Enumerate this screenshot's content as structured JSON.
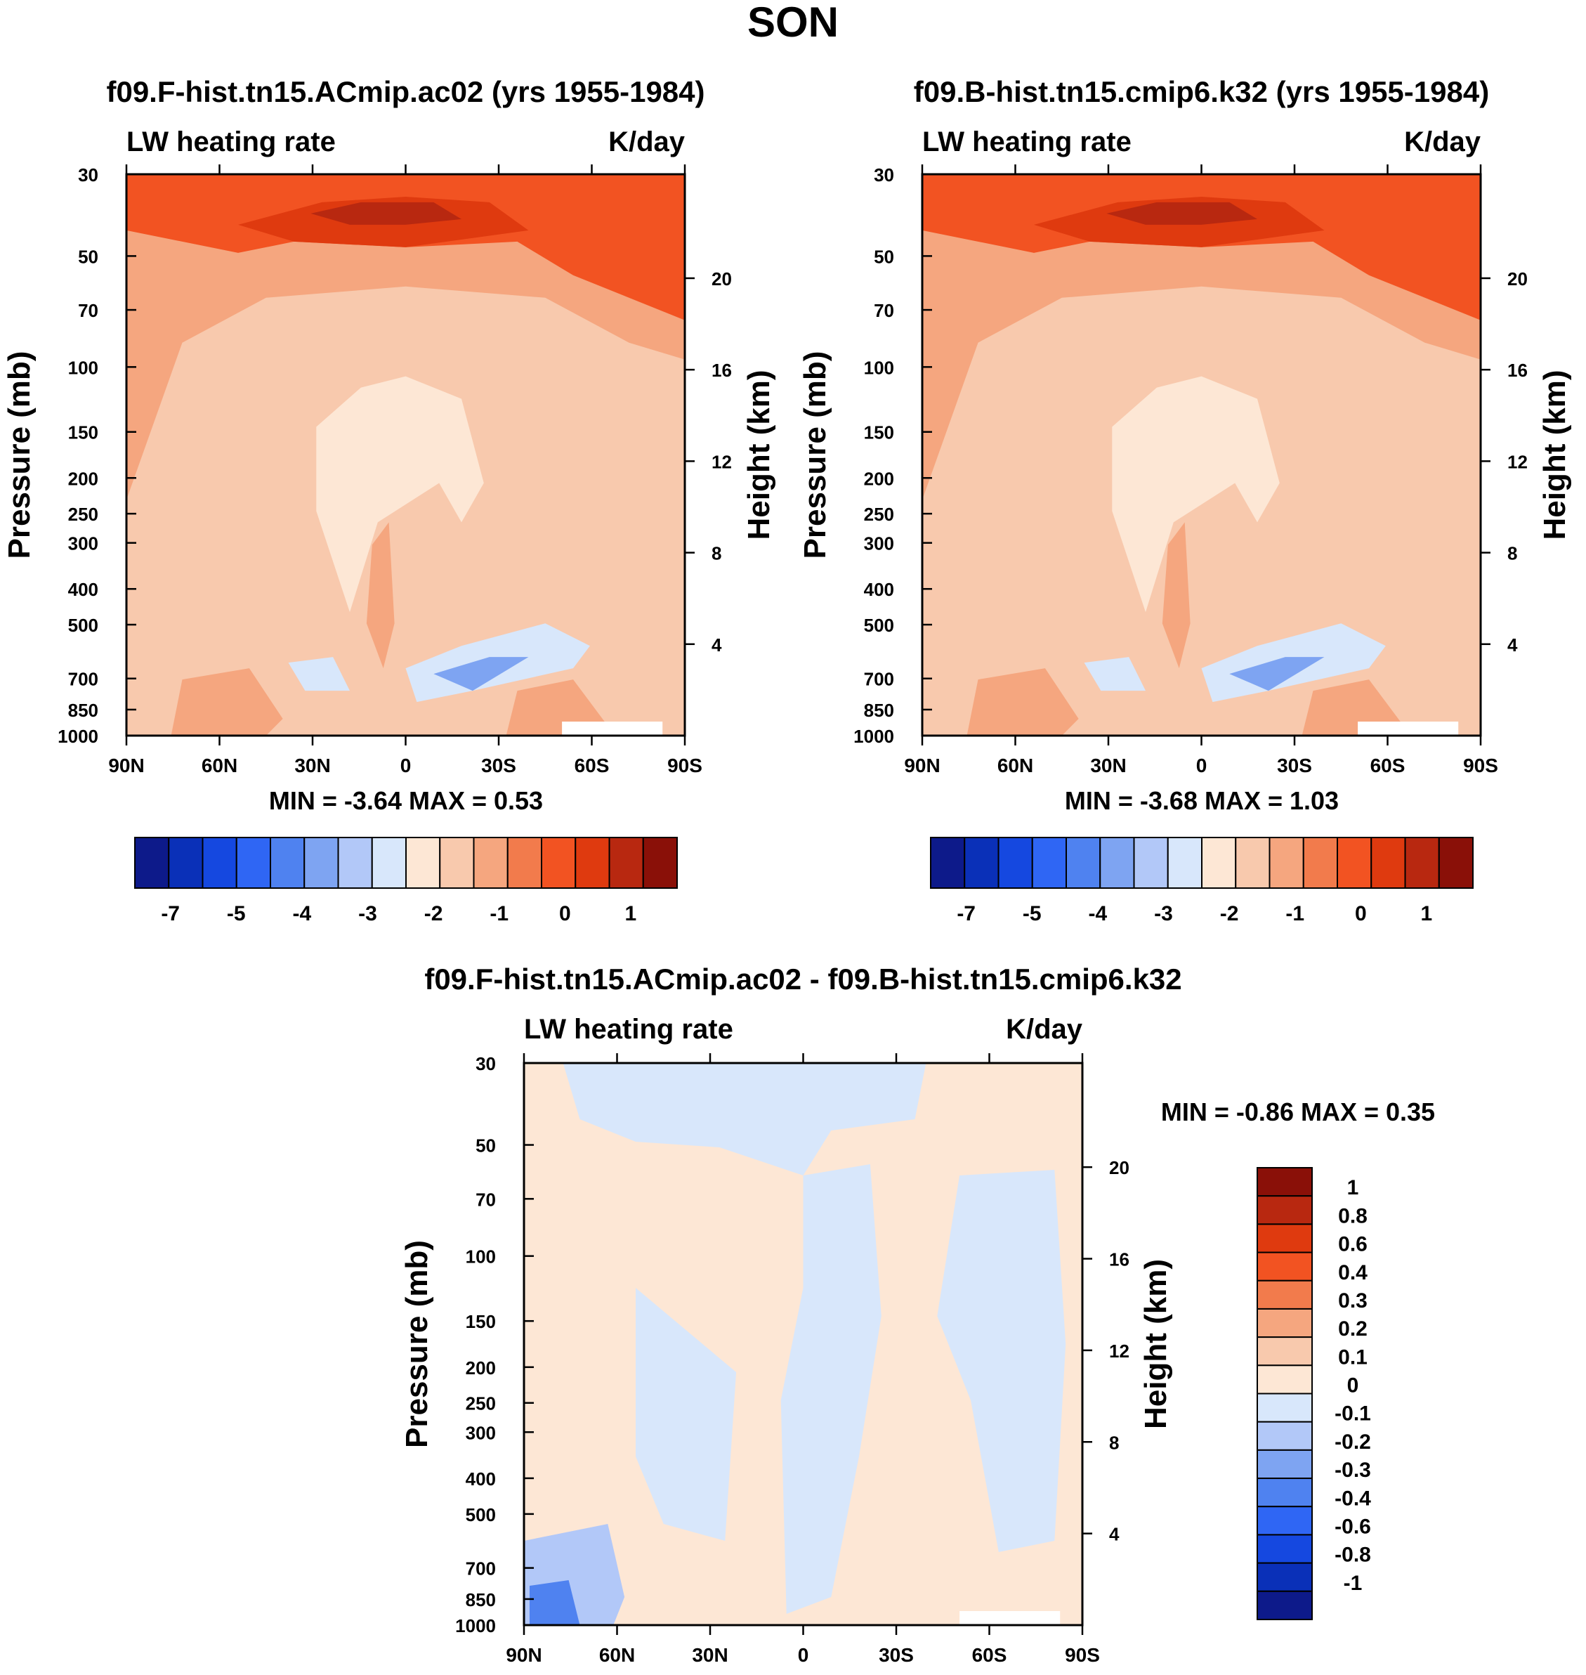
{
  "figure": {
    "season": "SON",
    "colors": {
      "background": "#ffffff",
      "axis": "#000000",
      "fill_default": "#f8c9ad"
    }
  },
  "chart_data": [
    {
      "id": "panel-a",
      "type": "heatmap",
      "title": "f09.F-hist.tn15.ACmip.ac02 (yrs 1955-1984)",
      "left_label": "LW heating rate",
      "right_label": "K/day",
      "ylabel": "Pressure (mb)",
      "ylabel_right": "Height (km)",
      "x_ticks": [
        "90N",
        "60N",
        "30N",
        "0",
        "30S",
        "60S",
        "90S"
      ],
      "y_ticks": [
        "30",
        "50",
        "70",
        "100",
        "150",
        "200",
        "250",
        "300",
        "400",
        "500",
        "700",
        "850",
        "1000"
      ],
      "height_ticks": [
        "20",
        "16",
        "12",
        "8",
        "4"
      ],
      "xlim": [
        "90N",
        "90S"
      ],
      "ylim_mb": [
        1000,
        30
      ],
      "minmax_text": "MIN =  -3.64  MAX =   0.53",
      "min": -3.64,
      "max": 0.53,
      "colorbar": {
        "orientation": "horizontal",
        "colors": [
          "#0d1a8a",
          "#0a30b8",
          "#1548e0",
          "#2f66f4",
          "#4f82f0",
          "#7ea4f2",
          "#b2c8f8",
          "#d8e7fb",
          "#fde7d5",
          "#f8c9ad",
          "#f5a67f",
          "#f27b4c",
          "#f25322",
          "#df3a0f",
          "#b82810",
          "#8a1008"
        ],
        "labels": [
          "-7",
          "-5",
          "-4",
          "-3",
          "-2",
          "-1",
          "0",
          "1"
        ]
      }
    },
    {
      "id": "panel-b",
      "type": "heatmap",
      "title": "f09.B-hist.tn15.cmip6.k32 (yrs 1955-1984)",
      "left_label": "LW heating rate",
      "right_label": "K/day",
      "ylabel": "Pressure (mb)",
      "ylabel_right": "Height (km)",
      "x_ticks": [
        "90N",
        "60N",
        "30N",
        "0",
        "30S",
        "60S",
        "90S"
      ],
      "y_ticks": [
        "30",
        "50",
        "70",
        "100",
        "150",
        "200",
        "250",
        "300",
        "400",
        "500",
        "700",
        "850",
        "1000"
      ],
      "height_ticks": [
        "20",
        "16",
        "12",
        "8",
        "4"
      ],
      "xlim": [
        "90N",
        "90S"
      ],
      "ylim_mb": [
        1000,
        30
      ],
      "minmax_text": "MIN =  -3.68  MAX =   1.03",
      "min": -3.68,
      "max": 1.03,
      "colorbar": {
        "orientation": "horizontal",
        "colors": [
          "#0d1a8a",
          "#0a30b8",
          "#1548e0",
          "#2f66f4",
          "#4f82f0",
          "#7ea4f2",
          "#b2c8f8",
          "#d8e7fb",
          "#fde7d5",
          "#f8c9ad",
          "#f5a67f",
          "#f27b4c",
          "#f25322",
          "#df3a0f",
          "#b82810",
          "#8a1008"
        ],
        "labels": [
          "-7",
          "-5",
          "-4",
          "-3",
          "-2",
          "-1",
          "0",
          "1"
        ]
      }
    },
    {
      "id": "panel-c",
      "type": "heatmap",
      "title": "f09.F-hist.tn15.ACmip.ac02 - f09.B-hist.tn15.cmip6.k32",
      "left_label": "LW heating rate",
      "right_label": "K/day",
      "ylabel": "Pressure (mb)",
      "ylabel_right": "Height (km)",
      "x_ticks": [
        "90N",
        "60N",
        "30N",
        "0",
        "30S",
        "60S",
        "90S"
      ],
      "y_ticks": [
        "30",
        "50",
        "70",
        "100",
        "150",
        "200",
        "250",
        "300",
        "400",
        "500",
        "700",
        "850",
        "1000"
      ],
      "height_ticks": [
        "20",
        "16",
        "12",
        "8",
        "4"
      ],
      "xlim": [
        "90N",
        "90S"
      ],
      "ylim_mb": [
        1000,
        30
      ],
      "minmax_text": "MIN =  -0.86  MAX =   0.35",
      "min": -0.86,
      "max": 0.35,
      "colorbar": {
        "orientation": "vertical",
        "colors": [
          "#8a1008",
          "#b82810",
          "#df3a0f",
          "#f25322",
          "#f27b4c",
          "#f5a67f",
          "#f8c9ad",
          "#fde7d5",
          "#d8e7fb",
          "#b2c8f8",
          "#7ea4f2",
          "#4f82f0",
          "#2f66f4",
          "#1548e0",
          "#0a30b8",
          "#0d1a8a"
        ],
        "labels": [
          "1",
          "0.8",
          "0.6",
          "0.4",
          "0.3",
          "0.2",
          "0.1",
          "0",
          "-0.1",
          "-0.2",
          "-0.3",
          "-0.4",
          "-0.6",
          "-0.8",
          "-1"
        ]
      }
    }
  ]
}
